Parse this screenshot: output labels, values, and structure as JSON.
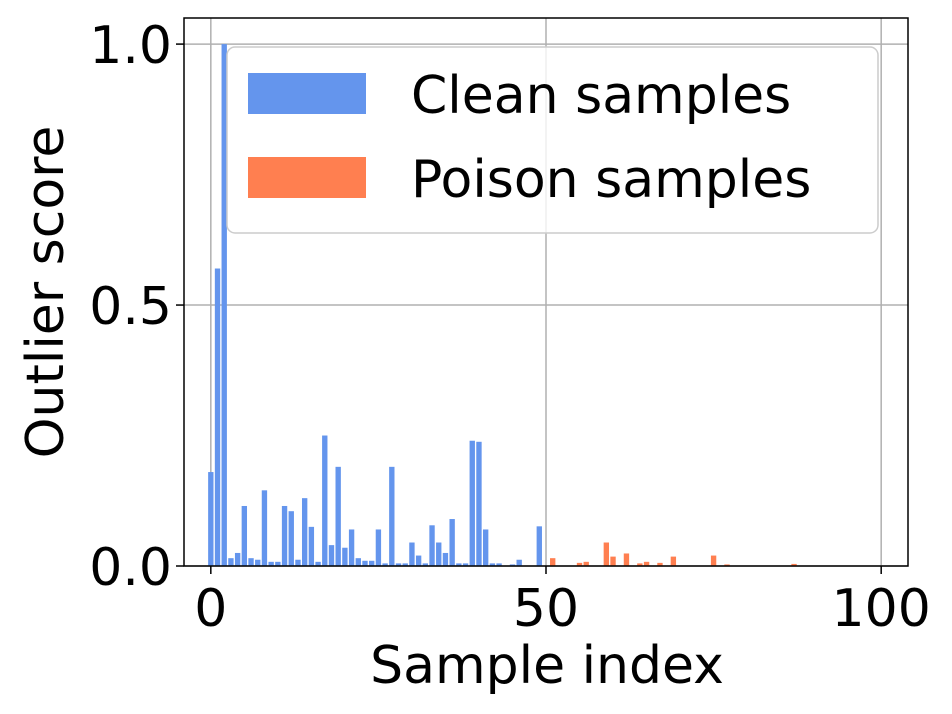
{
  "chart_data": {
    "type": "bar",
    "title": "",
    "xlabel": "Sample index",
    "ylabel": "Outlier score",
    "xlim": [
      -4,
      104
    ],
    "ylim": [
      0,
      1.05
    ],
    "xticks": [
      0,
      50,
      100
    ],
    "xtick_labels": [
      "0",
      "50",
      "100"
    ],
    "yticks": [
      0.0,
      0.5,
      1.0
    ],
    "ytick_labels": [
      "0.0",
      "0.5",
      "1.0"
    ],
    "grid": true,
    "legend_position": "top-right",
    "series": [
      {
        "name": "Clean samples",
        "color": "#6495ED",
        "x": [
          0,
          1,
          2,
          3,
          4,
          5,
          6,
          7,
          8,
          9,
          10,
          11,
          12,
          13,
          14,
          15,
          16,
          17,
          18,
          19,
          20,
          21,
          22,
          23,
          24,
          25,
          26,
          27,
          28,
          29,
          30,
          31,
          32,
          33,
          34,
          35,
          36,
          37,
          38,
          39,
          40,
          41,
          42,
          43,
          44,
          45,
          46,
          47,
          48,
          49
        ],
        "values": [
          0.18,
          0.57,
          1.0,
          0.015,
          0.025,
          0.115,
          0.015,
          0.012,
          0.145,
          0.008,
          0.008,
          0.115,
          0.105,
          0.012,
          0.13,
          0.075,
          0.008,
          0.25,
          0.04,
          0.19,
          0.035,
          0.07,
          0.015,
          0.01,
          0.01,
          0.07,
          0.005,
          0.19,
          0.005,
          0.005,
          0.045,
          0.02,
          0.005,
          0.078,
          0.045,
          0.025,
          0.09,
          0.005,
          0.005,
          0.24,
          0.238,
          0.07,
          0.005,
          0.005,
          0.0,
          0.003,
          0.012,
          0.0,
          0.0,
          0.076
        ]
      },
      {
        "name": "Poison samples",
        "color": "#FF7F50",
        "x": [
          50,
          51,
          52,
          53,
          54,
          55,
          56,
          57,
          58,
          59,
          60,
          61,
          62,
          63,
          64,
          65,
          66,
          67,
          68,
          69,
          70,
          71,
          72,
          73,
          74,
          75,
          76,
          77,
          78,
          79,
          80,
          81,
          82,
          83,
          84,
          85,
          86,
          87,
          88,
          89,
          90,
          91,
          92,
          93,
          94,
          95,
          96,
          97,
          98,
          99
        ],
        "values": [
          0.0,
          0.015,
          0.0,
          0.0,
          0.0,
          0.006,
          0.008,
          0.0,
          0.0,
          0.045,
          0.018,
          0.0,
          0.024,
          0.0,
          0.005,
          0.008,
          0.0,
          0.006,
          0.0,
          0.018,
          0.0,
          0.0,
          0.0,
          0.0,
          0.0,
          0.02,
          0.0,
          0.003,
          0.0,
          0.0,
          0.0,
          0.0,
          0.0,
          0.0,
          0.0,
          0.0,
          0.0,
          0.004,
          0.0,
          0.0,
          0.0,
          0.0,
          0.0,
          0.0,
          0.0,
          0.0,
          0.0,
          0.0,
          0.0,
          0.0
        ]
      }
    ]
  }
}
